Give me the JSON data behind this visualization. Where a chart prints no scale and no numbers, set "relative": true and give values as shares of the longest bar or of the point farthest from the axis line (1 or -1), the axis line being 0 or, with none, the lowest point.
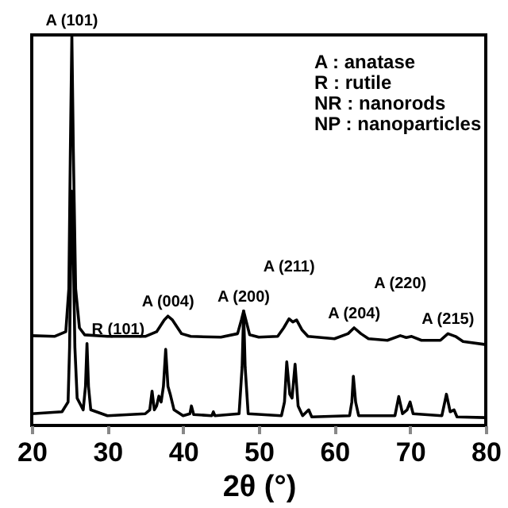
{
  "chart_data": {
    "type": "line",
    "relative": true,
    "xlabel": "2θ (°)",
    "xlim": [
      20,
      80
    ],
    "xticks": [
      20,
      30,
      40,
      50,
      60,
      70,
      80
    ],
    "series": [
      {
        "color": "#000000",
        "x": [
          20,
          23,
          24.5,
          24.9,
          25.1,
          25.3,
          25.5,
          25.8,
          26.3,
          27,
          30,
          35,
          36.5,
          37.5,
          38,
          38.6,
          39.8,
          41,
          45,
          47.2,
          47.7,
          48,
          48.3,
          48.8,
          50,
          52.5,
          53.3,
          54,
          54.5,
          55,
          55.7,
          56.5,
          60,
          61.8,
          62.6,
          63.5,
          64.5,
          67,
          68.7,
          69.5,
          70.2,
          71.5,
          74,
          75,
          76,
          77,
          80
        ],
        "values": [
          0.23,
          0.228,
          0.24,
          0.35,
          0.7,
          1.0,
          0.7,
          0.35,
          0.25,
          0.232,
          0.228,
          0.228,
          0.24,
          0.27,
          0.28,
          0.27,
          0.235,
          0.228,
          0.226,
          0.235,
          0.27,
          0.293,
          0.27,
          0.232,
          0.226,
          0.228,
          0.25,
          0.273,
          0.265,
          0.27,
          0.245,
          0.228,
          0.222,
          0.235,
          0.25,
          0.235,
          0.222,
          0.218,
          0.23,
          0.225,
          0.228,
          0.218,
          0.218,
          0.235,
          0.228,
          0.215,
          0.207
        ]
      },
      {
        "color": "#000000",
        "x": [
          20,
          24,
          24.8,
          25.0,
          25.2,
          25.3,
          25.45,
          25.7,
          26,
          26.8,
          27.1,
          27.3,
          27.5,
          27.8,
          30,
          35,
          35.6,
          35.9,
          36.2,
          36.5,
          36.8,
          37.1,
          37.4,
          37.7,
          38,
          38.3,
          38.8,
          40,
          40.9,
          41.1,
          41.4,
          43.8,
          44,
          44.2,
          47.4,
          47.8,
          48.0,
          48.2,
          48.6,
          53,
          53.4,
          53.7,
          54.1,
          54.4,
          54.8,
          55.2,
          55.8,
          56.6,
          57,
          62,
          62.3,
          62.5,
          62.8,
          63.2,
          68,
          68.5,
          69,
          69.6,
          70,
          70.4,
          74.2,
          74.8,
          75.3,
          75.8,
          76.2,
          80
        ],
        "values": [
          0.03,
          0.035,
          0.06,
          0.2,
          0.5,
          0.6,
          0.5,
          0.2,
          0.07,
          0.04,
          0.1,
          0.21,
          0.1,
          0.04,
          0.025,
          0.03,
          0.04,
          0.088,
          0.04,
          0.05,
          0.075,
          0.06,
          0.1,
          0.195,
          0.1,
          0.08,
          0.04,
          0.025,
          0.03,
          0.05,
          0.028,
          0.025,
          0.035,
          0.025,
          0.03,
          0.15,
          0.293,
          0.15,
          0.03,
          0.025,
          0.06,
          0.163,
          0.08,
          0.07,
          0.157,
          0.05,
          0.025,
          0.04,
          0.022,
          0.025,
          0.06,
          0.126,
          0.06,
          0.025,
          0.025,
          0.074,
          0.03,
          0.04,
          0.06,
          0.03,
          0.025,
          0.08,
          0.035,
          0.04,
          0.022,
          0.02
        ]
      }
    ],
    "annotations": [
      {
        "text": "A (101)",
        "x": 25.3,
        "y": 1.0
      },
      {
        "text": "A (004)",
        "x": 38,
        "y": 0.28
      },
      {
        "text": "A (200)",
        "x": 48,
        "y": 0.293
      },
      {
        "text": "A (211)",
        "x": 54,
        "y": 0.273
      },
      {
        "text": "A (204)",
        "x": 62.6,
        "y": 0.25
      },
      {
        "text": "A (220)",
        "x": 68.7,
        "y": 0.23
      },
      {
        "text": "A (215)",
        "x": 75,
        "y": 0.235
      },
      {
        "text": "R (101)",
        "x": 27.3,
        "y": 0.21
      },
      "A   : anatase",
      "R   : rutile",
      "NR  : nanorods",
      "NP  : nanoparticles"
    ]
  }
}
